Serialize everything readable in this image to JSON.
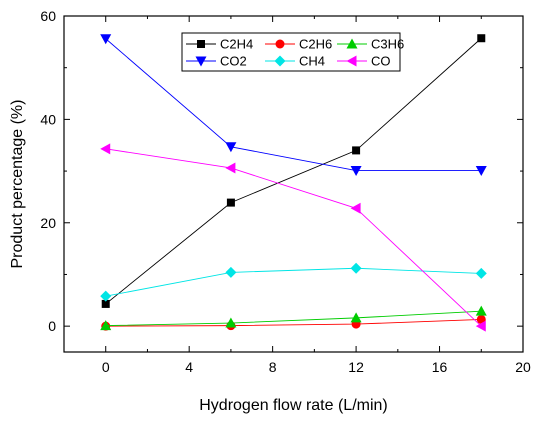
{
  "chart_data": {
    "type": "line",
    "xlabel": "Hydrogen flow rate (L/min)",
    "ylabel": "Product percentage (%)",
    "xlim": [
      -2,
      20
    ],
    "ylim": [
      -5,
      60
    ],
    "xticks": [
      0,
      4,
      8,
      12,
      16,
      20
    ],
    "yticks": [
      0,
      20,
      40,
      60
    ],
    "x": [
      0,
      6,
      12,
      18
    ],
    "grid": false,
    "legend_placement": "top-center",
    "series": [
      {
        "name": "C2H4",
        "values": [
          4.3,
          23.9,
          34.0,
          55.7
        ],
        "color": "#000000",
        "marker": "square"
      },
      {
        "name": "C2H6",
        "values": [
          0.0,
          0.1,
          0.4,
          1.3
        ],
        "color": "#ff0000",
        "marker": "circle"
      },
      {
        "name": "C3H6",
        "values": [
          0.1,
          0.6,
          1.6,
          2.9
        ],
        "color": "#00cc00",
        "marker": "triangle-up"
      },
      {
        "name": "CO2",
        "values": [
          55.6,
          34.7,
          30.1,
          30.1
        ],
        "color": "#0000ff",
        "marker": "triangle-down"
      },
      {
        "name": "CH4",
        "values": [
          5.8,
          10.4,
          11.2,
          10.2
        ],
        "color": "#00e5e5",
        "marker": "diamond"
      },
      {
        "name": "CO",
        "values": [
          34.3,
          30.6,
          22.8,
          0.0
        ],
        "color": "#ff00ff",
        "marker": "triangle-left"
      }
    ]
  }
}
